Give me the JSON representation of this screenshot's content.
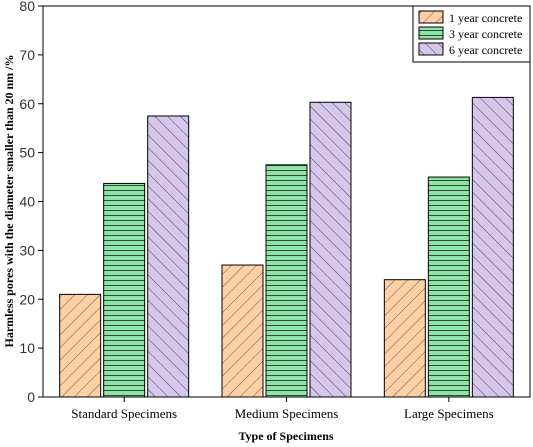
{
  "chart_data": {
    "type": "bar",
    "xlabel": "Type of Specimens",
    "ylabel": "Harmless pores with the diameter smaller than 20 nm /%",
    "categories": [
      "Standard Specimens",
      "Medium Specimens",
      "Large Specimens"
    ],
    "ylim": [
      0,
      80
    ],
    "yticks": [
      0,
      10,
      20,
      30,
      40,
      50,
      60,
      70,
      80
    ],
    "grid": false,
    "legend_position": "top-right",
    "series": [
      {
        "name": "1 year concrete",
        "values": [
          21,
          27,
          24
        ],
        "color": "#fdd0a6",
        "pattern": "diagonal-up"
      },
      {
        "name": "3 year concrete",
        "values": [
          43.7,
          47.5,
          45
        ],
        "color": "#8ee3a7",
        "pattern": "horizontal"
      },
      {
        "name": "6 year concrete",
        "values": [
          57.5,
          60.3,
          61.3
        ],
        "color": "#d6c6ec",
        "pattern": "diagonal-down"
      }
    ]
  }
}
